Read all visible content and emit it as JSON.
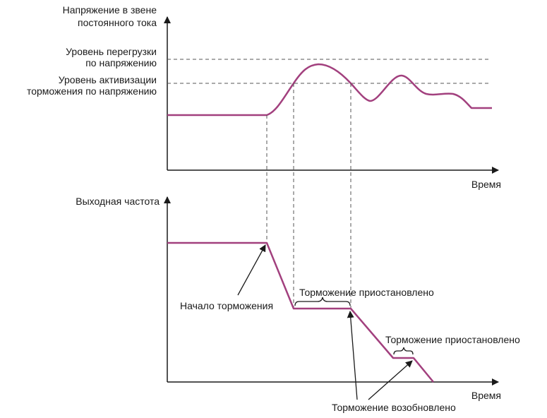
{
  "top_panel": {
    "ylabel_line1": "Напряжение в звене",
    "ylabel_line2": "постоянного тока",
    "overload_label_line1": "Уровень перегрузки",
    "overload_label_line2": "по напряжению",
    "activation_label_line1": "Уровень активизации",
    "activation_label_line2": "торможения по напряжению",
    "xlabel": "Время"
  },
  "bottom_panel": {
    "ylabel": "Выходная частота",
    "xlabel": "Время",
    "braking_start": "Начало торможения",
    "braking_paused_1": "Торможение приостановлено",
    "braking_paused_2": "Торможение приостановлено",
    "braking_resumed": "Торможение возобновлено"
  },
  "colors": {
    "curve": "#a2407e",
    "axes": "#1a1a1a",
    "guides": "#555555"
  }
}
